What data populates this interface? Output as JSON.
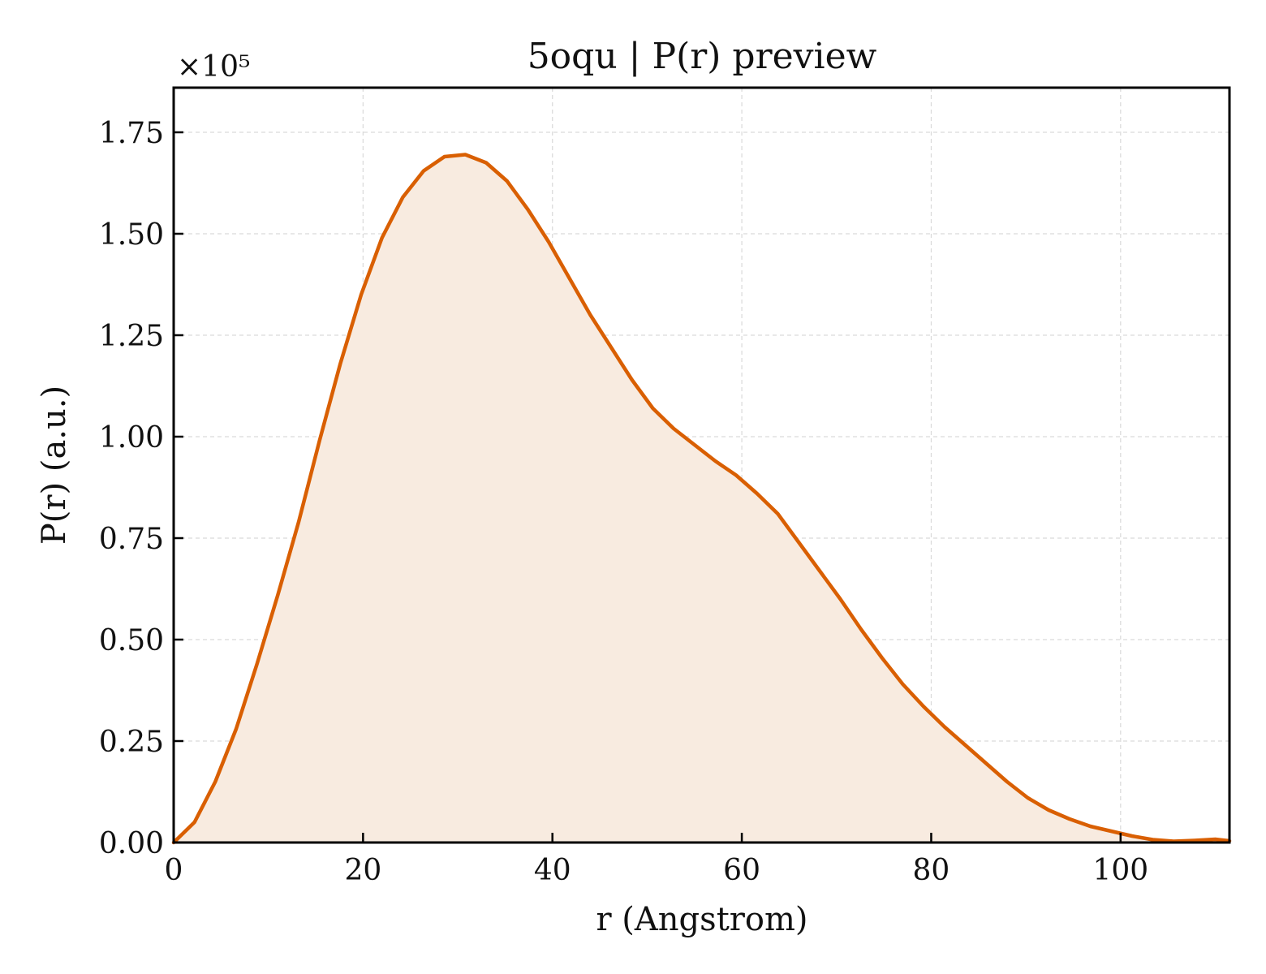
{
  "chart_data": {
    "type": "area",
    "title": "5oqu | P(r) preview",
    "xlabel": "r (Angstrom)",
    "ylabel": "P(r) (a.u.)",
    "y_offset_label": "×10⁵",
    "xlim": [
      0,
      111.5
    ],
    "ylim": [
      0,
      1.86
    ],
    "xticks": [
      0,
      20,
      40,
      60,
      80,
      100
    ],
    "yticks": [
      "0.00",
      "0.25",
      "0.50",
      "0.75",
      "1.00",
      "1.25",
      "1.50",
      "1.75"
    ],
    "grid": true,
    "line_color": "#d95f02",
    "fill_color": "#f8ebe0",
    "series": [
      {
        "x": [
          0,
          2.2,
          4.4,
          6.6,
          8.8,
          11.0,
          13.2,
          15.4,
          17.6,
          19.8,
          22.0,
          24.2,
          26.4,
          28.6,
          30.8,
          33.0,
          35.2,
          37.4,
          39.6,
          41.8,
          44.0,
          46.2,
          48.4,
          50.6,
          52.8,
          55.0,
          57.2,
          59.4,
          61.6,
          63.8,
          66.0,
          68.2,
          70.4,
          72.6,
          74.8,
          77.0,
          79.2,
          81.4,
          83.6,
          85.8,
          88.0,
          90.2,
          92.4,
          94.6,
          96.8,
          99.0,
          101.2,
          103.4,
          105.6,
          107.8,
          110.0,
          111.5
        ],
        "y": [
          0.0,
          0.05,
          0.15,
          0.28,
          0.44,
          0.61,
          0.79,
          0.99,
          1.18,
          1.35,
          1.49,
          1.59,
          1.655,
          1.69,
          1.695,
          1.675,
          1.63,
          1.56,
          1.48,
          1.39,
          1.3,
          1.22,
          1.14,
          1.07,
          1.02,
          0.98,
          0.94,
          0.905,
          0.86,
          0.81,
          0.74,
          0.67,
          0.6,
          0.525,
          0.455,
          0.39,
          0.335,
          0.285,
          0.24,
          0.195,
          0.15,
          0.11,
          0.08,
          0.058,
          0.04,
          0.028,
          0.016,
          0.007,
          0.003,
          0.005,
          0.008,
          0.004
        ]
      }
    ]
  }
}
